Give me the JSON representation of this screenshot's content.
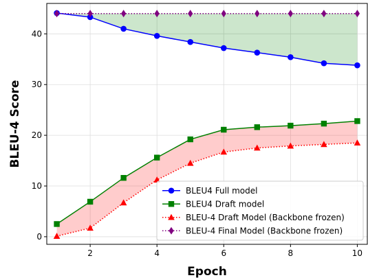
{
  "chart_data": {
    "type": "line",
    "title": "",
    "xlabel": "Epoch",
    "ylabel": "BLEU-4 Score",
    "x": [
      1,
      2,
      3,
      4,
      5,
      6,
      7,
      8,
      9,
      10
    ],
    "xlim": [
      0.7,
      10.3
    ],
    "ylim": [
      -1.5,
      46
    ],
    "xticks": [
      2,
      4,
      6,
      8,
      10
    ],
    "yticks": [
      0,
      10,
      20,
      30,
      40
    ],
    "grid": true,
    "legend_position": "lower-right",
    "series": [
      {
        "name": "BLEU4 Full model",
        "values": [
          44.1,
          43.3,
          41.0,
          39.6,
          38.4,
          37.2,
          36.3,
          35.4,
          34.2,
          33.8
        ],
        "color": "#0000ff",
        "marker": "circle",
        "line": "solid"
      },
      {
        "name": "BLEU4 Draft model",
        "values": [
          2.5,
          6.9,
          11.6,
          15.6,
          19.2,
          21.1,
          21.6,
          21.9,
          22.3,
          22.8
        ],
        "color": "#008000",
        "marker": "square",
        "line": "solid"
      },
      {
        "name": "BLEU-4 Draft Model (Backbone frozen)",
        "values": [
          0.1,
          1.7,
          6.7,
          11.2,
          14.5,
          16.7,
          17.5,
          17.9,
          18.2,
          18.5
        ],
        "color": "#ff0000",
        "marker": "triangle",
        "line": "dotted"
      },
      {
        "name": "BLEU-4 Final Model (Backbone frozen)",
        "values": [
          44.0,
          44.0,
          44.0,
          44.0,
          44.0,
          44.0,
          44.0,
          44.0,
          44.0,
          44.0
        ],
        "color": "#800080",
        "marker": "diamond",
        "line": "dotted"
      }
    ],
    "fills": [
      {
        "between": [
          0,
          3
        ],
        "color": "#008000",
        "opacity": 0.2
      },
      {
        "between": [
          1,
          2
        ],
        "color": "#ff0000",
        "opacity": 0.2
      }
    ]
  }
}
